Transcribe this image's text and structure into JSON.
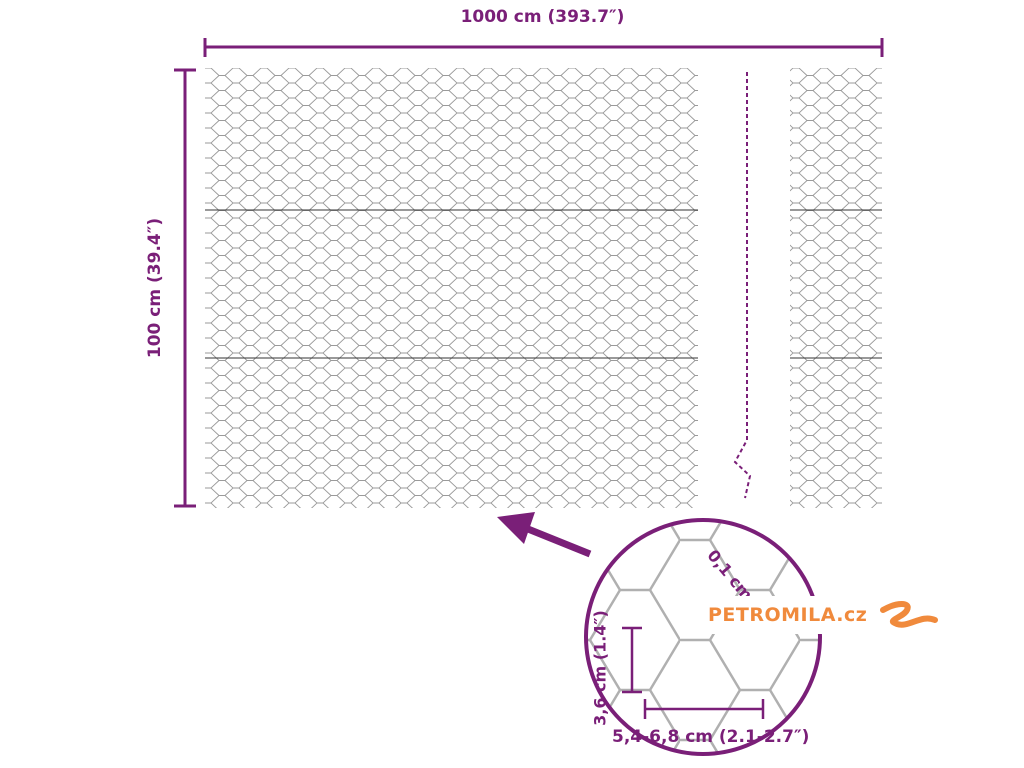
{
  "dimensions": {
    "width_label": "1000 cm (393.7″)",
    "height_label": "100 cm (39.4″)"
  },
  "detail": {
    "wire_thickness": "0,1 cm",
    "mesh_height": "3,6 cm (1.4″)",
    "mesh_width": "5,4-6,8 cm (2.1-2.7″)"
  },
  "logo": {
    "text": "PETROMILA.cz"
  },
  "colors": {
    "accent": "#7a1f78",
    "wire": "#9a9a9a",
    "logo": "#f08a3c"
  }
}
